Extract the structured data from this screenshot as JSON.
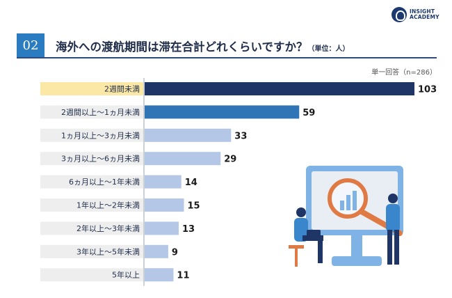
{
  "logo": {
    "line1": "INSIGHT",
    "line2": "ACADEMY"
  },
  "header": {
    "number": "02",
    "title": "海外への渡航期間は滞在合計どれくらいですか？",
    "unit": "（単位：人）"
  },
  "note": "単一回答（n=286）",
  "colors": {
    "highlight_bar": "#1e3566",
    "second_bar": "#2f74b5",
    "other_bar": "#b4c7e7",
    "highlight_label_bg": "#fce8a6",
    "label_bg": "#eeeeee"
  },
  "chart_data": {
    "type": "bar",
    "orientation": "horizontal",
    "categories": [
      "2週間未満",
      "2週間以上〜1ヵ月未満",
      "1ヵ月以上〜3ヵ月未満",
      "3ヵ月以上〜6ヵ月未満",
      "6ヵ月以上〜1年未満",
      "1年以上〜2年未満",
      "2年以上〜3年未満",
      "3年以上〜5年未満",
      "5年以上"
    ],
    "values": [
      103,
      59,
      33,
      29,
      14,
      15,
      13,
      9,
      11
    ],
    "data_labels": [
      "103",
      "59",
      "33",
      "29",
      "14",
      "15",
      "13",
      "9",
      "11"
    ],
    "xlim": [
      0,
      103
    ],
    "grid": false
  }
}
